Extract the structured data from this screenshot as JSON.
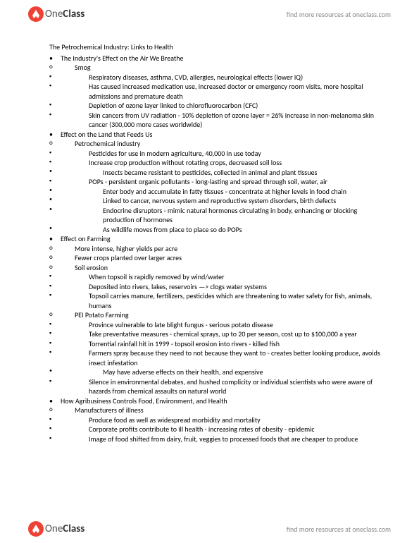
{
  "brand": {
    "one": "One",
    "class": "Class"
  },
  "header_link": "find more resources at oneclass.com",
  "footer_link": "find more resources at oneclass.com",
  "doc": {
    "title": "The Petrochemical Industry: Links to Health",
    "sections": [
      {
        "label": "The Industry's Effect on the Air We Breathe",
        "subs": [
          {
            "label": "Smog",
            "items": [
              {
                "text": "Respiratory diseases, asthma, CVD, allergies, neurological effects (lower IQ)"
              },
              {
                "text": "Has caused increased medication use, increased doctor or emergency room visits, more hospital admissions and premature death"
              },
              {
                "text": "Depletion of ozone layer linked to chlorofluorocarbon (CFC)"
              },
              {
                "text": "Skin cancers from UV radiation - 10% depletion of ozone layer = 26% increase in non-melanoma skin cancer (300,000 more cases worldwide)"
              }
            ]
          }
        ]
      },
      {
        "label": "Effect on the Land that Feeds Us",
        "subs": [
          {
            "label": "Petrochemical industry",
            "items": [
              {
                "text": "Pesticides for use in modern agriculture, 40,000 in use today"
              },
              {
                "text": "Increase crop production without rotating crops, decreased soil loss",
                "children": [
                  {
                    "text": "Insects became resistant to pesticides, collected in animal and plant tissues"
                  }
                ]
              },
              {
                "text": "POPs - persistent organic pollutants - long-lasting and spread through soil, water, air",
                "children": [
                  {
                    "text": "Enter body and accumulate in fatty tissues - concentrate at higher levels in food chain"
                  },
                  {
                    "text": "Linked to cancer, nervous system and reproductive system disorders, birth defects"
                  },
                  {
                    "text": "Endocrine disruptors - mimic natural hormones circulating in body, enhancing or blocking production of hormones"
                  },
                  {
                    "text": "As wildlife moves from place to place so do POPs"
                  }
                ]
              }
            ]
          }
        ]
      },
      {
        "label": "Effect on Farming",
        "subs": [
          {
            "label": "More intense, higher yields per acre"
          },
          {
            "label": "Fewer crops planted over larger acres"
          },
          {
            "label": "Soil erosion",
            "items": [
              {
                "text": "When topsoil is rapidly removed by wind/water"
              },
              {
                "text": "Deposited into rivers, lakes, reservoirs —> clogs water systems"
              },
              {
                "text": "Topsoil carries manure, fertilizers, pesticides which are threatening to water safety for fish, animals, humans"
              }
            ]
          },
          {
            "label": "PEI Potato Farming",
            "items": [
              {
                "text": "Province vulnerable to late blight fungus - serious potato disease"
              },
              {
                "text": "Take preventative measures - chemical sprays, up to 20 per season, cost up to $100,000 a year"
              },
              {
                "text": "Torrential rainfall hit in 1999 - topsoil erosion into rivers - killed fish"
              },
              {
                "text": "Farmers spray because they need to not because they want to - creates better looking produce, avoids insect infestation",
                "children": [
                  {
                    "text": "May have adverse effects on their health, and expensive"
                  }
                ]
              },
              {
                "text": "Silence in environmental debates, and hushed complicity or individual scientists who were aware of hazards from chemical assaults on natural world"
              }
            ]
          }
        ]
      },
      {
        "label": "How Agribusiness Controls Food, Environment, and Health",
        "subs": [
          {
            "label": "Manufacturers of illness",
            "items": [
              {
                "text": "Produce food as well as widespread morbidity and mortality"
              },
              {
                "text": "Corporate profits contribute to ill health - increasing rates of obesity - epidemic"
              },
              {
                "text": "Image of food shifted from dairy, fruit, veggies to processed foods that are cheaper to produce"
              }
            ]
          }
        ]
      }
    ]
  }
}
